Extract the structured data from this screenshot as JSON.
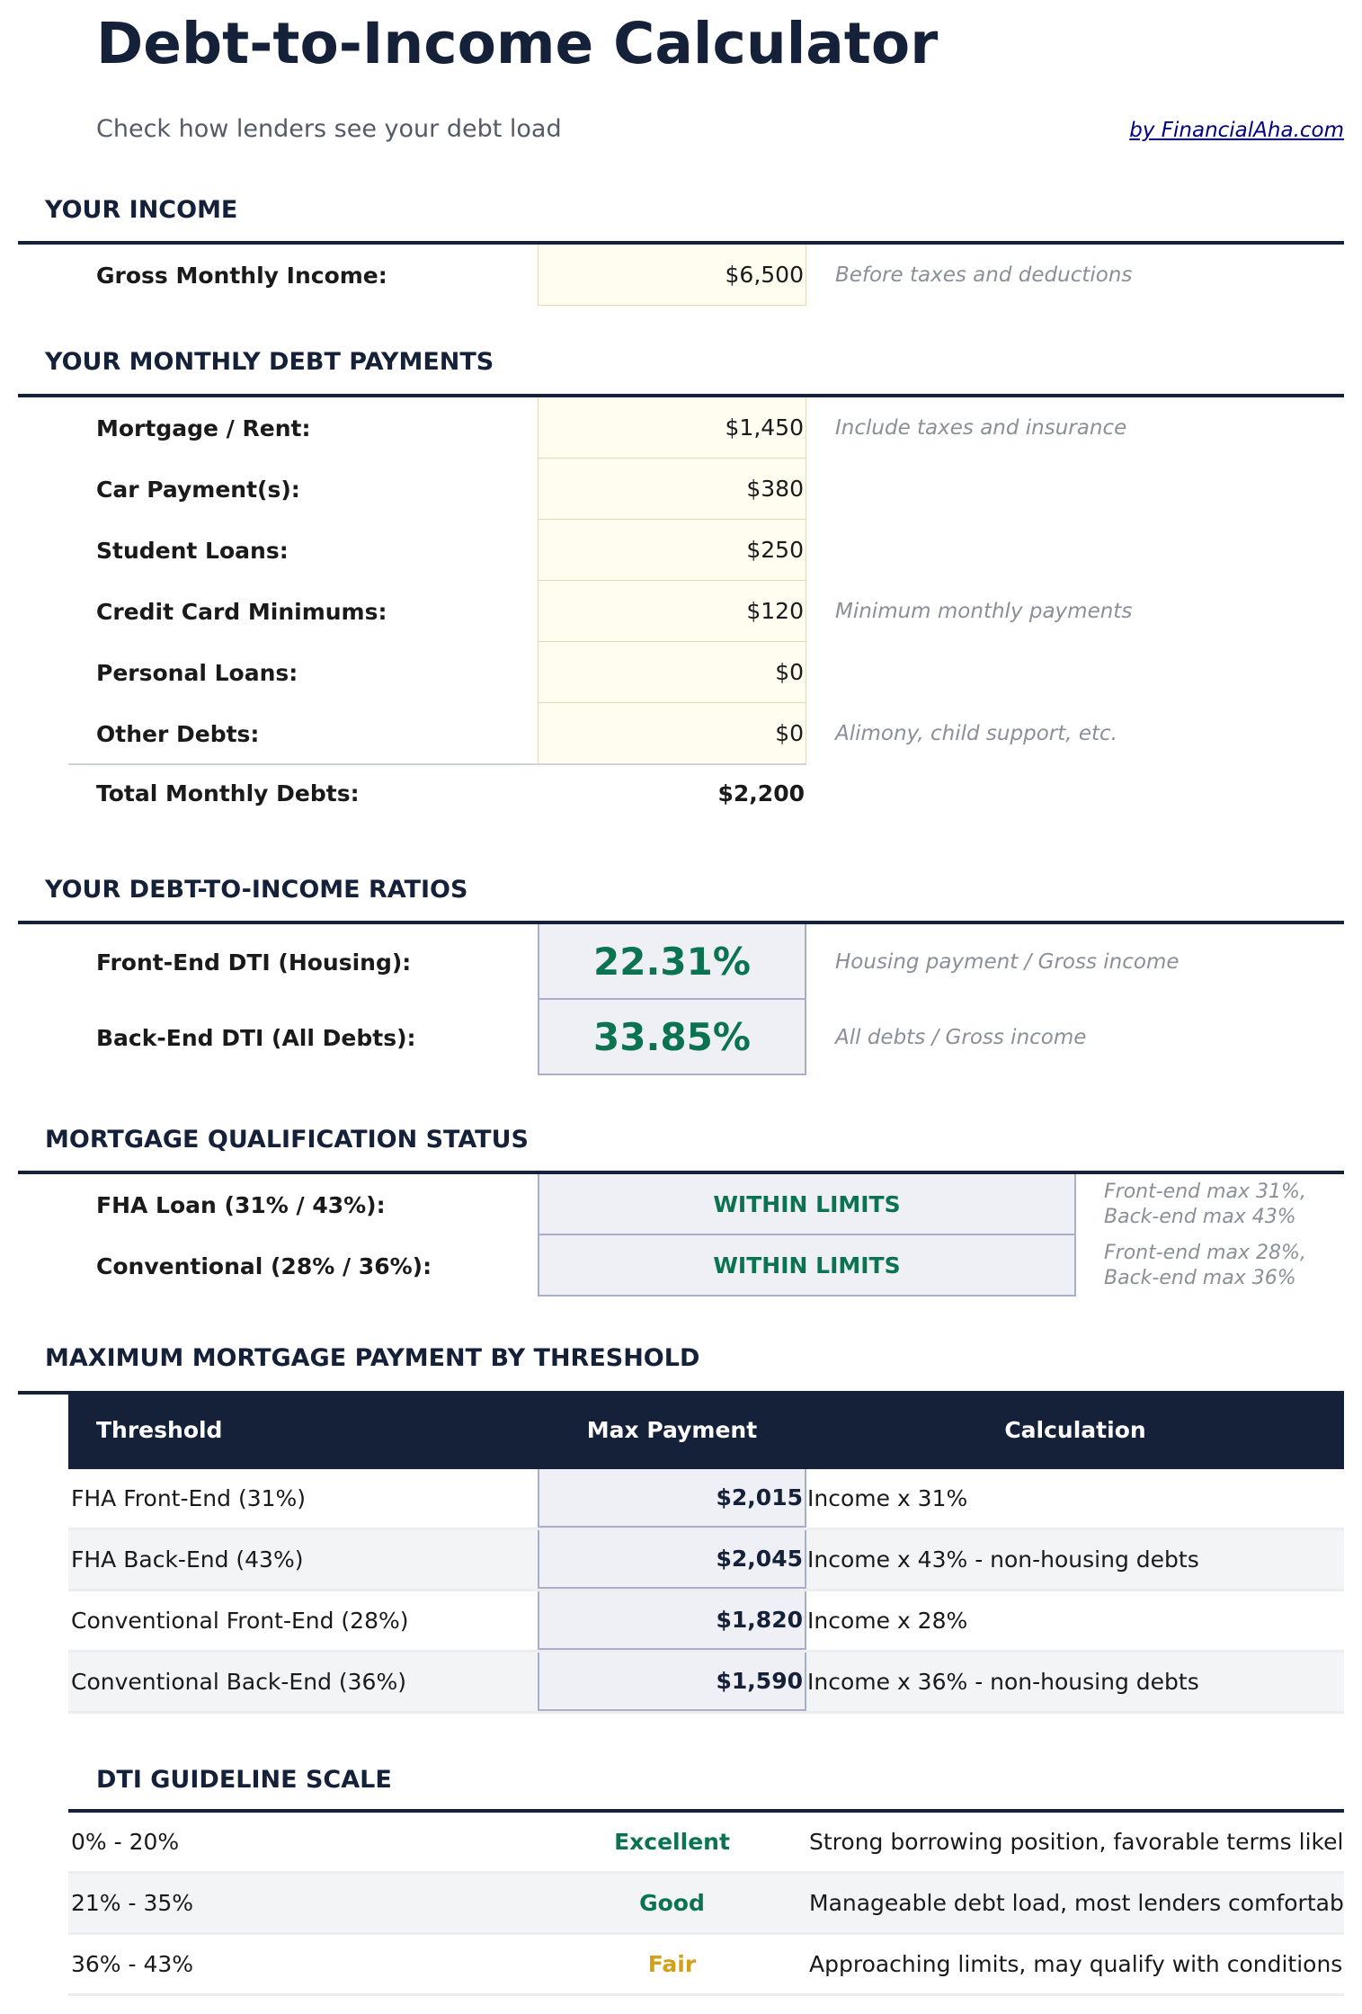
{
  "header": {
    "title": "Debt-to-Income Calculator",
    "subtitle": "Check how lenders see your debt load",
    "brand_link": "by FinancialAha.com"
  },
  "income": {
    "section_title": "YOUR INCOME",
    "label": "Gross Monthly Income:",
    "value": "$6,500",
    "note": "Before taxes and deductions"
  },
  "debts": {
    "section_title": "YOUR MONTHLY DEBT PAYMENTS",
    "items": [
      {
        "label": "Mortgage / Rent:",
        "value": "$1,450",
        "note": "Include taxes and insurance"
      },
      {
        "label": "Car Payment(s):",
        "value": "$380",
        "note": ""
      },
      {
        "label": "Student Loans:",
        "value": "$250",
        "note": ""
      },
      {
        "label": "Credit Card Minimums:",
        "value": "$120",
        "note": "Minimum monthly payments"
      },
      {
        "label": "Personal Loans:",
        "value": "$0",
        "note": ""
      },
      {
        "label": "Other Debts:",
        "value": "$0",
        "note": "Alimony, child support, etc."
      }
    ],
    "total_label": "Total Monthly Debts:",
    "total_value": "$2,200"
  },
  "ratios": {
    "section_title": "YOUR DEBT-TO-INCOME RATIOS",
    "items": [
      {
        "label": "Front-End DTI (Housing):",
        "value": "22.31%",
        "note": "Housing payment / Gross income"
      },
      {
        "label": "Back-End DTI (All Debts):",
        "value": "33.85%",
        "note": "All debts / Gross income"
      }
    ]
  },
  "qualification": {
    "section_title": "MORTGAGE QUALIFICATION STATUS",
    "items": [
      {
        "label": "FHA Loan (31% / 43%):",
        "status": "WITHIN LIMITS",
        "note_line1": "Front-end max 31%,",
        "note_line2": "Back-end max 43%"
      },
      {
        "label": "Conventional (28% / 36%):",
        "status": "WITHIN LIMITS",
        "note_line1": "Front-end max 28%,",
        "note_line2": "Back-end max 36%"
      }
    ]
  },
  "max_payment": {
    "section_title": "MAXIMUM MORTGAGE PAYMENT BY THRESHOLD",
    "columns": [
      "Threshold",
      "Max Payment",
      "Calculation"
    ],
    "rows": [
      {
        "threshold": "FHA Front-End (31%)",
        "max": "$2,015",
        "calc": "Income x 31%"
      },
      {
        "threshold": "FHA Back-End (43%)",
        "max": "$2,045",
        "calc": "Income x 43% - non-housing debts"
      },
      {
        "threshold": "Conventional Front-End (28%)",
        "max": "$1,820",
        "calc": "Income x 28%"
      },
      {
        "threshold": "Conventional Back-End (36%)",
        "max": "$1,590",
        "calc": "Income x 36% - non-housing debts"
      }
    ]
  },
  "scale": {
    "section_title": "DTI GUIDELINE SCALE",
    "rows": [
      {
        "range": "0% - 20%",
        "rating": "Excellent",
        "color": "#0b7350",
        "desc": "Strong borrowing position, favorable terms likely"
      },
      {
        "range": "21% - 35%",
        "rating": "Good",
        "color": "#0b7350",
        "desc": "Manageable debt load, most lenders comfortable"
      },
      {
        "range": "36% - 43%",
        "rating": "Fair",
        "color": "#d4a017",
        "desc": "Approaching limits, may qualify with conditions"
      }
    ]
  }
}
